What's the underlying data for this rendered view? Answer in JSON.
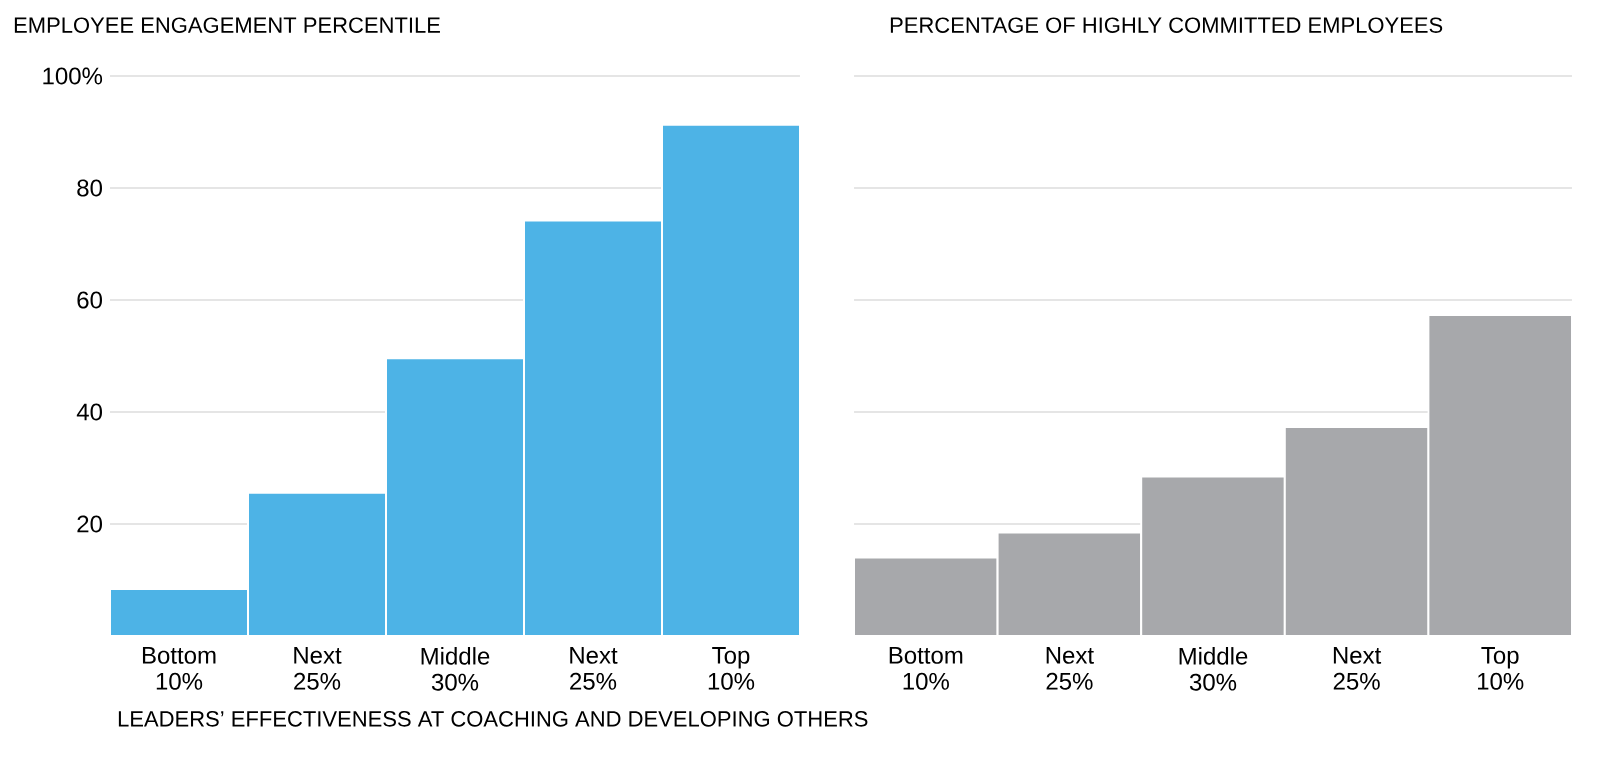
{
  "chart_data": [
    {
      "type": "bar",
      "title": "EMPLOYEE ENGAGEMENT PERCENTILE",
      "xlabel": "LEADERS’ EFFECTIVENESS AT COACHING AND DEVELOPING OTHERS",
      "categories": [
        "Bottom 10%",
        "Next 25%",
        "Middle 30%",
        "Next 25%",
        "Top 10%"
      ],
      "values": [
        8.4,
        25.6,
        49.6,
        74.2,
        91.3
      ],
      "color": "#4db3e6",
      "ylim": [
        0,
        100
      ],
      "yticks": [
        {
          "value": 20,
          "label": "20"
        },
        {
          "value": 40,
          "label": "40"
        },
        {
          "value": 60,
          "label": "60"
        },
        {
          "value": 80,
          "label": "80"
        },
        {
          "value": 100,
          "label": "100%"
        }
      ],
      "grid": "y"
    },
    {
      "type": "bar",
      "title": "PERCENTAGE OF HIGHLY COMMITTED EMPLOYEES",
      "categories": [
        "Bottom 10%",
        "Next 25%",
        "Middle 30%",
        "Next 25%",
        "Top 10%"
      ],
      "values": [
        14,
        18.5,
        28.5,
        37.3,
        57.3
      ],
      "color": "#a7a8ab",
      "ylim": [
        0,
        100
      ],
      "yticks": [
        {
          "value": 20,
          "label": null
        },
        {
          "value": 40,
          "label": null
        },
        {
          "value": 60,
          "label": null
        },
        {
          "value": 80,
          "label": null
        },
        {
          "value": 100,
          "label": null
        }
      ],
      "grid": "y",
      "tick_labels": "x"
    }
  ]
}
